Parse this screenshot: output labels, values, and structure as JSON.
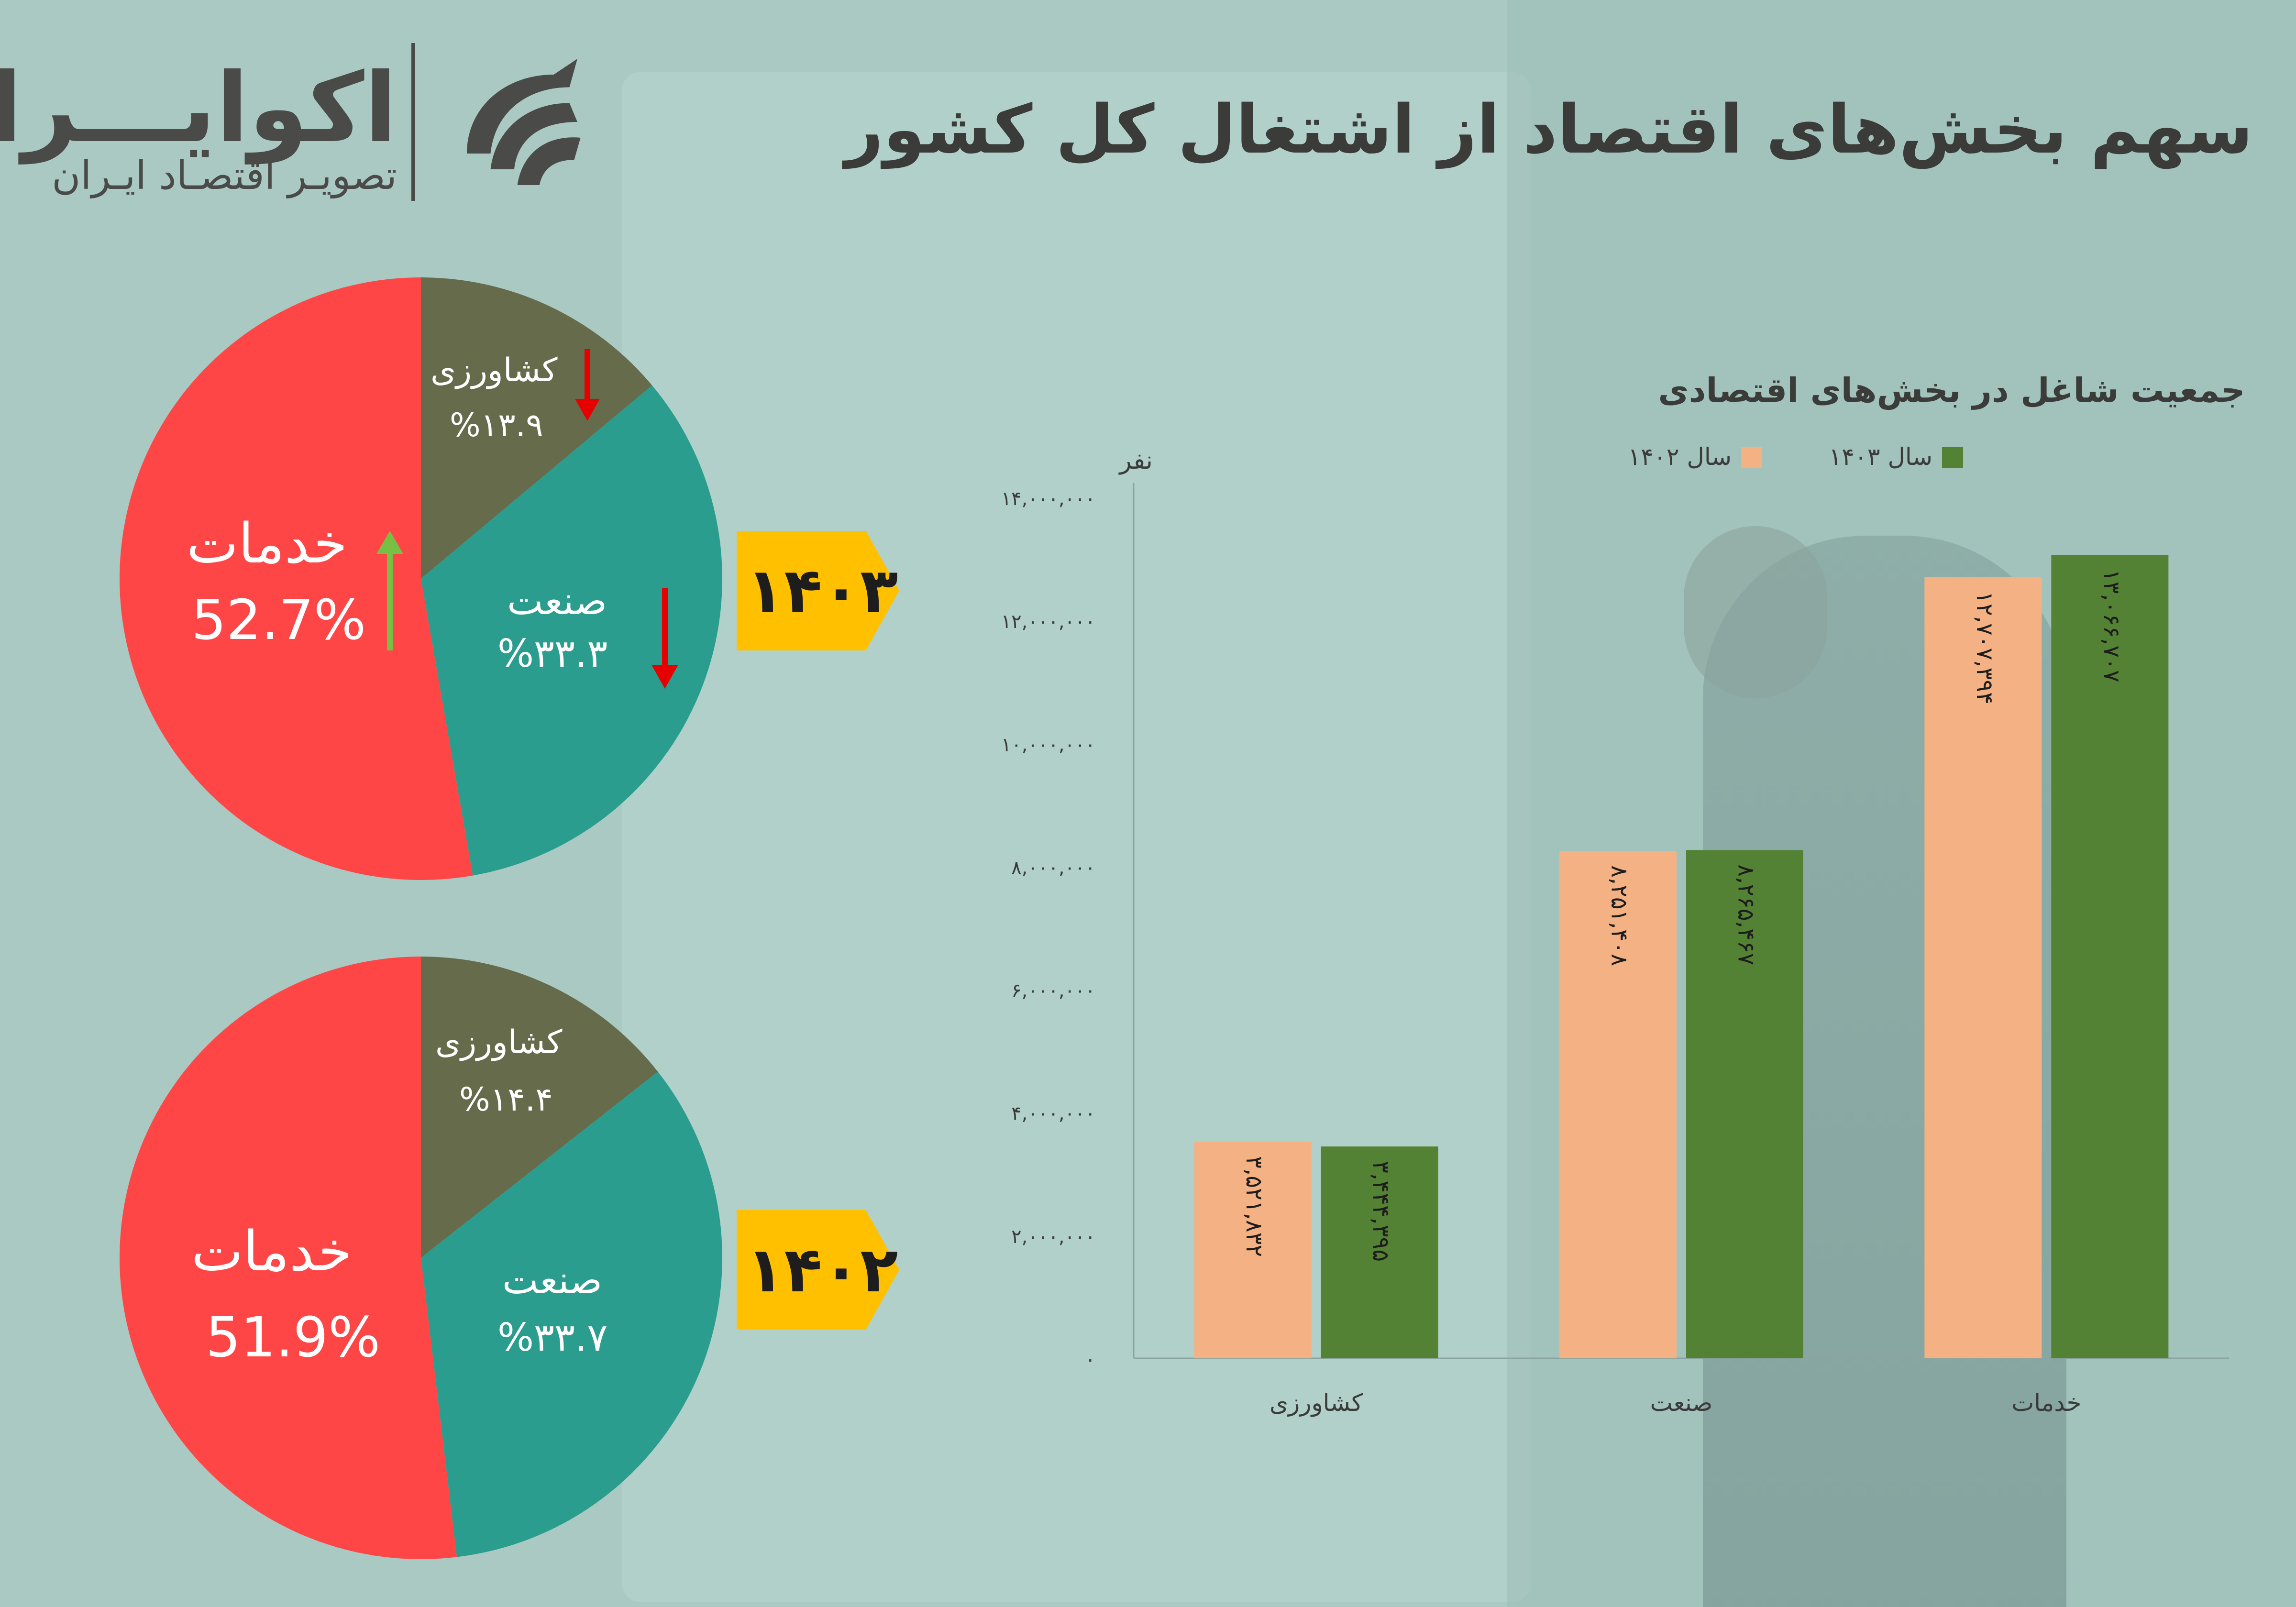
{
  "header": {
    "logo_title": "اکوایـــران",
    "logo_subtitle": "تصویـر اقتصـاد ایـران",
    "page_title": "سهم بخش‌های اقتصاد از اشتغال کل کشور"
  },
  "colors": {
    "services": "#ff4646",
    "industry": "#2a9d8f",
    "agriculture": "#656b4b",
    "tag": "#ffc000",
    "bar_1402": "#f4b183",
    "bar_1403": "#548235",
    "arrow_up": "#76c043",
    "arrow_down": "#e60000"
  },
  "pies": [
    {
      "year_tag": "۱۴۰۳",
      "slices": [
        {
          "name": "خدمات",
          "value": "52.7%",
          "percent": 52.7
        },
        {
          "name": "صنعت",
          "value": "%۳۳.۳",
          "percent": 33.3
        },
        {
          "name": "کشاورزی",
          "value": "%۱۳.۹",
          "percent": 13.9
        }
      ],
      "trend": {
        "services": "up",
        "industry": "down",
        "agriculture": "down"
      }
    },
    {
      "year_tag": "۱۴۰۲",
      "slices": [
        {
          "name": "خدمات",
          "value": "51.9%",
          "percent": 51.9
        },
        {
          "name": "صنعت",
          "value": "%۳۳.۷",
          "percent": 33.7
        },
        {
          "name": "کشاورزی",
          "value": "%۱۴.۴",
          "percent": 14.4
        }
      ]
    }
  ],
  "chart_data": [
    {
      "type": "pie",
      "title": "",
      "labels": [
        "خدمات",
        "صنعت",
        "کشاورزی"
      ],
      "values": [
        52.7,
        33.3,
        13.9
      ],
      "data_labels": [
        "52.7%",
        "%۳۳.۳",
        "%۱۳.۹"
      ],
      "year": "۱۴۰۳"
    },
    {
      "type": "pie",
      "title": "",
      "labels": [
        "خدمات",
        "صنعت",
        "کشاورزی"
      ],
      "values": [
        51.9,
        33.7,
        14.4
      ],
      "data_labels": [
        "51.9%",
        "%۳۳.۷",
        "%۱۴.۴"
      ],
      "year": "۱۴۰۲"
    },
    {
      "type": "bar",
      "title": "جمعیت شاغل در بخش‌های اقتصادی",
      "ylabel": "نفر",
      "xlabel": "",
      "categories": [
        "کشاورزی",
        "صنعت",
        "خدمات"
      ],
      "ylim": [
        0,
        14000000
      ],
      "yticks": [
        0,
        2000000,
        4000000,
        6000000,
        8000000,
        10000000,
        12000000,
        14000000
      ],
      "ytick_labels": [
        "۰",
        "۲,۰۰۰,۰۰۰",
        "۴,۰۰۰,۰۰۰",
        "۶,۰۰۰,۰۰۰",
        "۸,۰۰۰,۰۰۰",
        "۱۰,۰۰۰,۰۰۰",
        "۱۲,۰۰۰,۰۰۰",
        "۱۴,۰۰۰,۰۰۰"
      ],
      "series": [
        {
          "name": "سال ۱۴۰۲",
          "values": [
            3521832,
            8251408,
            12707394
          ],
          "labels": [
            "۳,۵۲۱,۸۳۲",
            "۸,۲۵۱,۴۰۸",
            "۱۲,۷۰۷,۳۹۴"
          ]
        },
        {
          "name": "سال ۱۴۰۳",
          "values": [
            3444395,
            8265467,
            13066707
          ],
          "labels": [
            "۳,۴۴۴,۳۹۵",
            "۸,۲۶۵,۴۶۷",
            "۱۳,۰۶۶,۷۰۷"
          ]
        }
      ],
      "legend_position": "top",
      "grid": false
    }
  ]
}
